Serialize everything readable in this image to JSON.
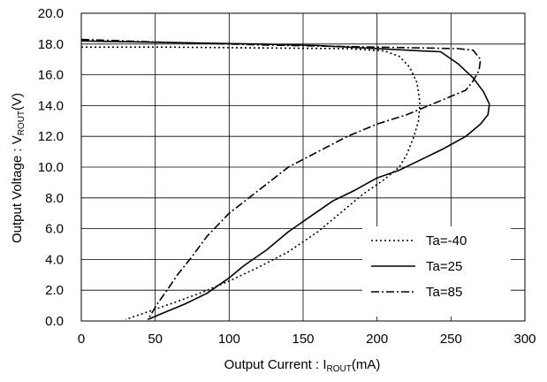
{
  "chart_data": {
    "type": "line",
    "xlabel": {
      "prefix": "Output Current : I",
      "sub": "ROUT",
      "suffix": "(mA)"
    },
    "ylabel": {
      "prefix": "Output Voltage : V",
      "sub": "ROUT",
      "suffix": "(V)"
    },
    "xlim": [
      0,
      300
    ],
    "ylim": [
      0,
      20
    ],
    "xticks": [
      0,
      50,
      100,
      150,
      200,
      250,
      300
    ],
    "yticks": [
      0,
      2,
      4,
      6,
      8,
      10,
      12,
      14,
      16,
      18,
      20
    ],
    "xtick_labels": [
      "0",
      "50",
      "100",
      "150",
      "200",
      "250",
      "300"
    ],
    "ytick_labels": [
      "0.0",
      "2.0",
      "4.0",
      "6.0",
      "8.0",
      "10.0",
      "12.0",
      "14.0",
      "16.0",
      "18.0",
      "20.0"
    ],
    "grid": true,
    "legend_position": "bottom-right",
    "series": [
      {
        "name": "Ta=-40",
        "dash": "dotted",
        "points": [
          [
            0,
            17.8
          ],
          [
            60,
            17.8
          ],
          [
            120,
            17.75
          ],
          [
            180,
            17.7
          ],
          [
            205,
            17.55
          ],
          [
            215,
            17.2
          ],
          [
            222,
            16.5
          ],
          [
            227,
            15.5
          ],
          [
            229,
            14.2
          ],
          [
            228,
            13.0
          ],
          [
            225,
            12.0
          ],
          [
            220,
            10.8
          ],
          [
            215,
            10.0
          ],
          [
            205,
            9.2
          ],
          [
            190,
            8.2
          ],
          [
            175,
            7.0
          ],
          [
            160,
            5.8
          ],
          [
            140,
            4.5
          ],
          [
            120,
            3.5
          ],
          [
            100,
            2.6
          ],
          [
            80,
            1.8
          ],
          [
            60,
            1.1
          ],
          [
            45,
            0.6
          ],
          [
            30,
            0.1
          ]
        ]
      },
      {
        "name": "Ta=25",
        "dash": "solid",
        "points": [
          [
            0,
            18.2
          ],
          [
            60,
            18.1
          ],
          [
            120,
            18.0
          ],
          [
            160,
            17.9
          ],
          [
            200,
            17.7
          ],
          [
            230,
            17.55
          ],
          [
            243,
            17.5
          ],
          [
            255,
            16.7
          ],
          [
            265,
            15.8
          ],
          [
            272,
            14.9
          ],
          [
            276,
            14.1
          ],
          [
            275,
            13.4
          ],
          [
            270,
            12.8
          ],
          [
            260,
            12.0
          ],
          [
            245,
            11.2
          ],
          [
            230,
            10.5
          ],
          [
            215,
            9.8
          ],
          [
            200,
            9.3
          ],
          [
            185,
            8.5
          ],
          [
            170,
            7.8
          ],
          [
            155,
            6.8
          ],
          [
            140,
            5.8
          ],
          [
            125,
            4.6
          ],
          [
            110,
            3.6
          ],
          [
            100,
            2.8
          ],
          [
            85,
            1.8
          ],
          [
            70,
            1.1
          ],
          [
            55,
            0.5
          ],
          [
            45,
            0.1
          ]
        ]
      },
      {
        "name": "Ta=85",
        "dash": "dashdot",
        "points": [
          [
            0,
            18.3
          ],
          [
            60,
            18.1
          ],
          [
            120,
            17.95
          ],
          [
            170,
            17.85
          ],
          [
            200,
            17.8
          ],
          [
            230,
            17.75
          ],
          [
            255,
            17.7
          ],
          [
            265,
            17.6
          ],
          [
            270,
            17.0
          ],
          [
            269,
            16.3
          ],
          [
            265,
            15.6
          ],
          [
            260,
            15.0
          ],
          [
            250,
            14.6
          ],
          [
            235,
            14.0
          ],
          [
            220,
            13.4
          ],
          [
            200,
            12.8
          ],
          [
            180,
            12.0
          ],
          [
            160,
            11.0
          ],
          [
            140,
            10.0
          ],
          [
            120,
            8.5
          ],
          [
            100,
            7.0
          ],
          [
            85,
            5.5
          ],
          [
            75,
            4.2
          ],
          [
            65,
            3.0
          ],
          [
            58,
            2.0
          ],
          [
            52,
            1.2
          ],
          [
            47,
            0.4
          ],
          [
            45,
            0.1
          ]
        ]
      }
    ]
  }
}
